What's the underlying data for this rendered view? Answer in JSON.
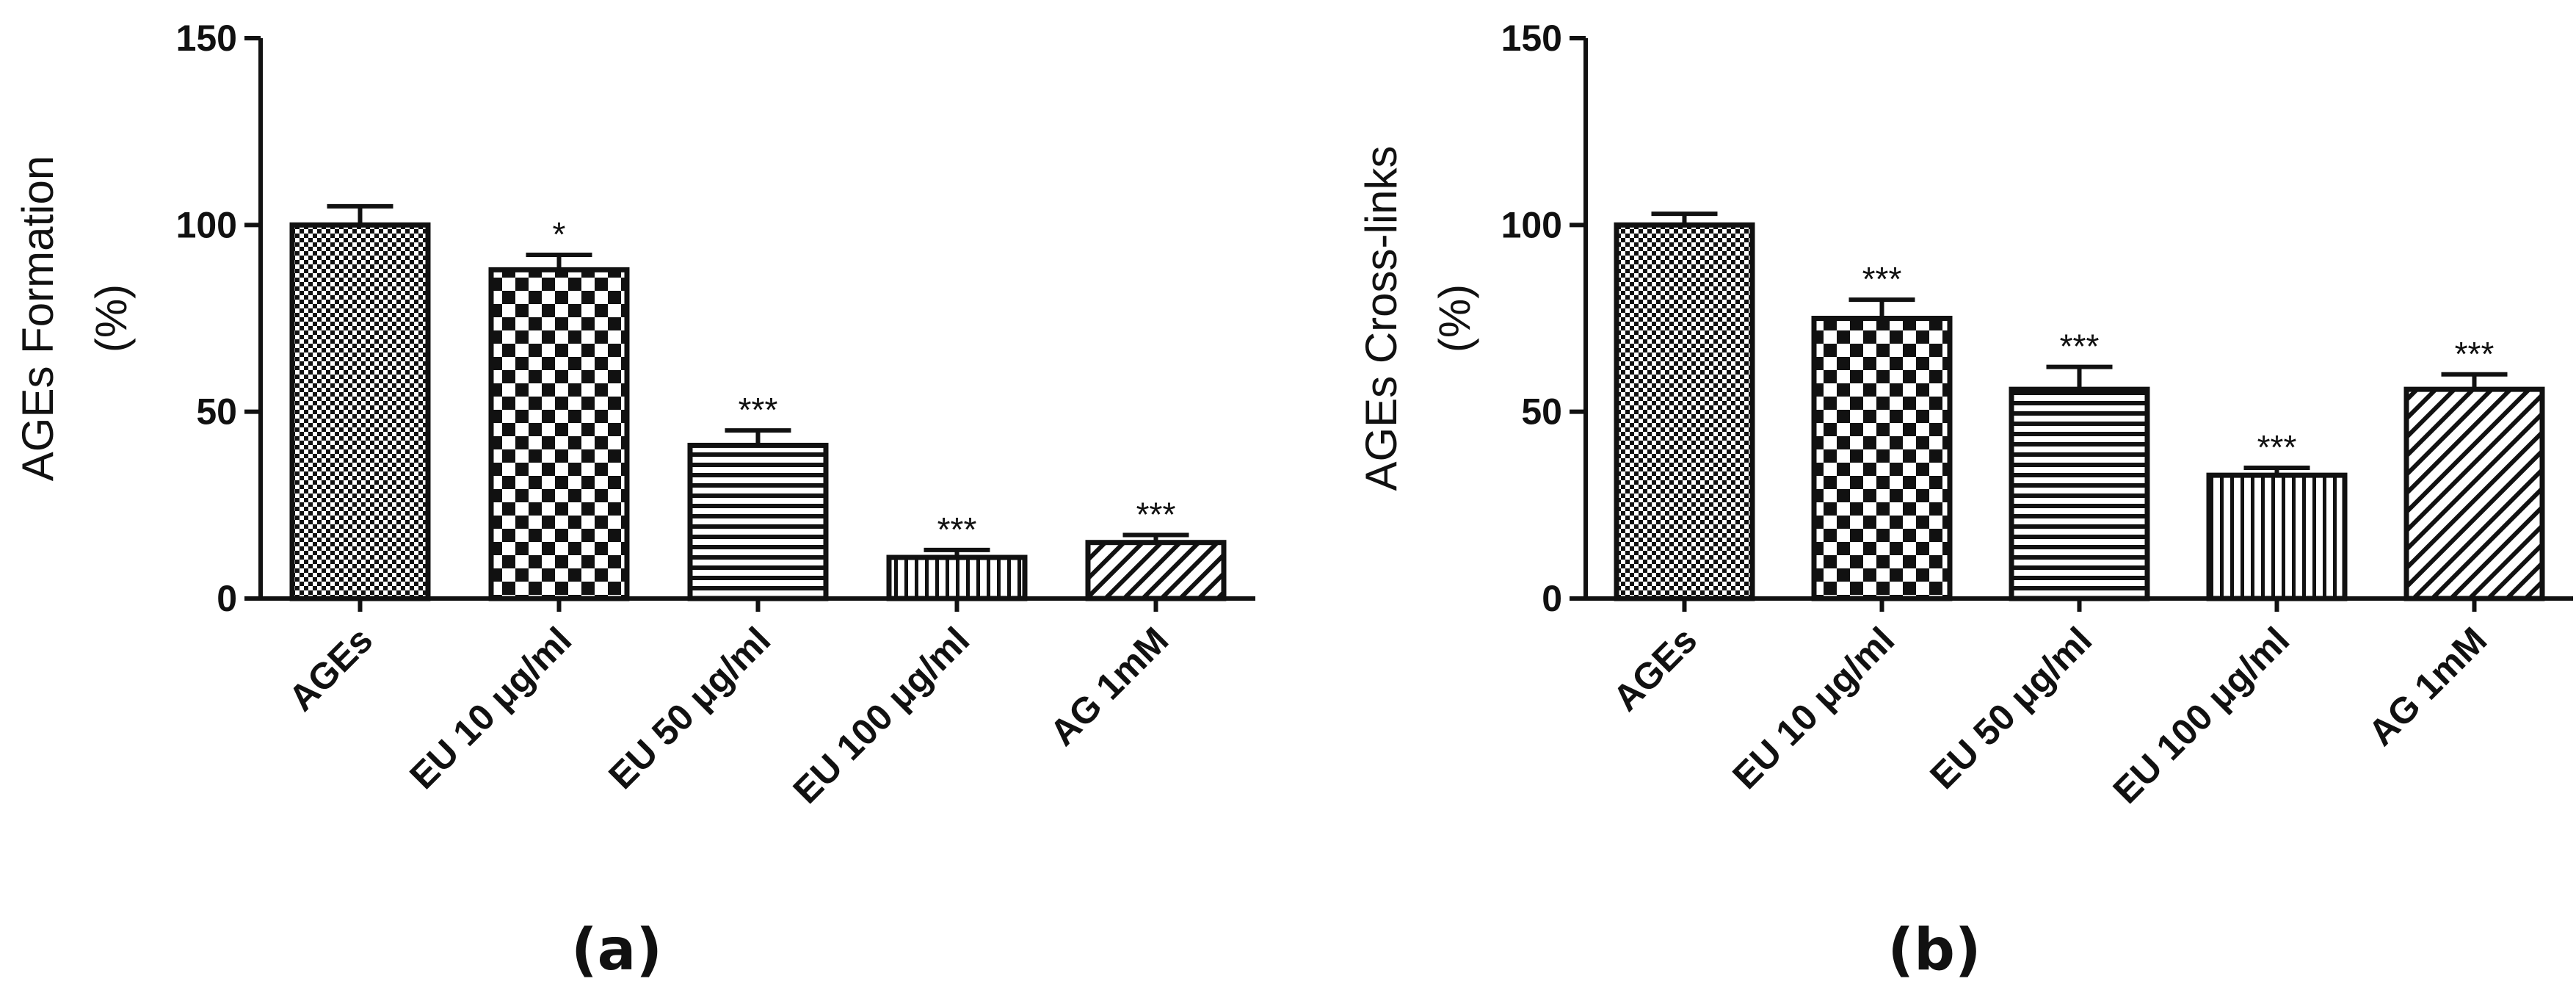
{
  "colors": {
    "bar_stroke": "#111111",
    "pattern_ink": "#111111",
    "background": "#ffffff"
  },
  "chart_data": [
    {
      "type": "bar",
      "panel_label": "(a)",
      "ylabel_line1": "AGEs Formation",
      "ylabel_line2": "(%)",
      "ylim": [
        0,
        150
      ],
      "yticks": [
        "0",
        "50",
        "100",
        "150"
      ],
      "grid": false,
      "categories": [
        "AGEs",
        "EU 10 μg/ml",
        "EU 50 μg/ml",
        "EU 100 μg/ml",
        "AG 1mM"
      ],
      "values": [
        100,
        88,
        41,
        11,
        15
      ],
      "errors": [
        5,
        4,
        4,
        2,
        2
      ],
      "significance": [
        "",
        "*",
        "***",
        "***",
        "***"
      ],
      "patterns": [
        "dense-check",
        "checker",
        "horizontal",
        "vertical",
        "diagonal"
      ]
    },
    {
      "type": "bar",
      "panel_label": "(b)",
      "ylabel_line1": "AGEs Cross-links",
      "ylabel_line2": "(%)",
      "ylim": [
        0,
        150
      ],
      "yticks": [
        "0",
        "50",
        "100",
        "150"
      ],
      "grid": false,
      "categories": [
        "AGEs",
        "EU 10 μg/ml",
        "EU 50 μg/ml",
        "EU 100 μg/ml",
        "AG 1mM"
      ],
      "values": [
        100,
        75,
        56,
        33,
        56
      ],
      "errors": [
        3,
        5,
        6,
        2,
        4
      ],
      "significance": [
        "",
        "***",
        "***",
        "***",
        "***"
      ],
      "patterns": [
        "dense-check",
        "checker",
        "horizontal",
        "vertical",
        "diagonal"
      ]
    }
  ]
}
